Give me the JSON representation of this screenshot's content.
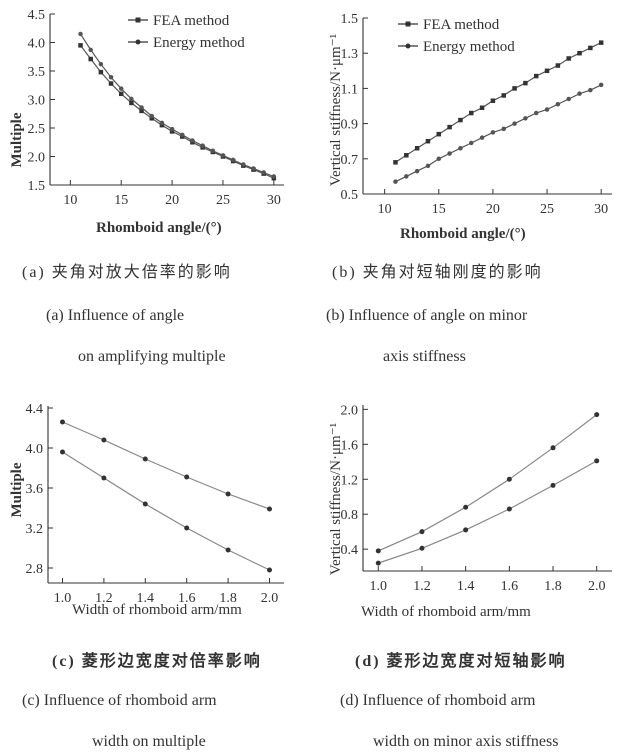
{
  "chart_data": [
    {
      "type": "line",
      "ylabel": "Multiple",
      "xlabel": "Rhomboid angle/(°)",
      "xlim": [
        8,
        31
      ],
      "ylim": [
        1.5,
        4.5
      ],
      "xticks": [
        10,
        15,
        20,
        25,
        30
      ],
      "yticks": [
        1.5,
        2.0,
        2.5,
        3.0,
        3.5,
        4.0,
        4.5
      ],
      "legend": "top-right",
      "series": [
        {
          "name": "FEA method",
          "marker": "square",
          "x": [
            11,
            12,
            13,
            14,
            15,
            16,
            17,
            18,
            19,
            20,
            21,
            22,
            23,
            24,
            25,
            26,
            27,
            28,
            29,
            30
          ],
          "y": [
            3.95,
            3.71,
            3.48,
            3.28,
            3.1,
            2.94,
            2.8,
            2.67,
            2.55,
            2.44,
            2.35,
            2.25,
            2.16,
            2.08,
            2.0,
            1.92,
            1.84,
            1.77,
            1.7,
            1.62
          ]
        },
        {
          "name": "Energy method",
          "marker": "circle",
          "x": [
            11,
            12,
            13,
            14,
            15,
            16,
            17,
            18,
            19,
            20,
            21,
            22,
            23,
            24,
            25,
            26,
            27,
            28,
            29,
            30
          ],
          "y": [
            4.15,
            3.87,
            3.62,
            3.39,
            3.19,
            3.01,
            2.86,
            2.71,
            2.59,
            2.48,
            2.38,
            2.28,
            2.19,
            2.1,
            2.02,
            1.94,
            1.86,
            1.79,
            1.72,
            1.65
          ]
        }
      ]
    },
    {
      "type": "line",
      "ylabel": "Vertical stiffness/N·μm⁻¹",
      "xlabel": "Rhomboid angle/(°)",
      "xlim": [
        8,
        31
      ],
      "ylim": [
        0.5,
        1.5
      ],
      "xticks": [
        10,
        15,
        20,
        25,
        30
      ],
      "yticks": [
        0.5,
        0.7,
        0.9,
        1.1,
        1.3,
        1.5
      ],
      "legend": "top-left",
      "series": [
        {
          "name": "FEA method",
          "marker": "square",
          "x": [
            11,
            12,
            13,
            14,
            15,
            16,
            17,
            18,
            19,
            20,
            21,
            22,
            23,
            24,
            25,
            26,
            27,
            28,
            29,
            30
          ],
          "y": [
            0.68,
            0.72,
            0.76,
            0.8,
            0.84,
            0.88,
            0.92,
            0.96,
            0.99,
            1.03,
            1.06,
            1.1,
            1.13,
            1.17,
            1.2,
            1.23,
            1.27,
            1.3,
            1.33,
            1.36
          ]
        },
        {
          "name": "Energy method",
          "marker": "circle",
          "x": [
            11,
            12,
            13,
            14,
            15,
            16,
            17,
            18,
            19,
            20,
            21,
            22,
            23,
            24,
            25,
            26,
            27,
            28,
            29,
            30
          ],
          "y": [
            0.57,
            0.6,
            0.63,
            0.66,
            0.7,
            0.73,
            0.76,
            0.79,
            0.82,
            0.85,
            0.87,
            0.9,
            0.93,
            0.96,
            0.98,
            1.01,
            1.04,
            1.07,
            1.09,
            1.12
          ]
        }
      ]
    },
    {
      "type": "line",
      "ylabel": "Multiple",
      "xlabel": "Width of rhomboid arm/mm",
      "xlim": [
        0.93,
        2.07
      ],
      "ylim": [
        2.65,
        4.42
      ],
      "xticks": [
        1.0,
        1.2,
        1.4,
        1.6,
        1.8,
        2.0
      ],
      "yticks": [
        2.8,
        3.2,
        3.6,
        4.0,
        4.4
      ],
      "series": [
        {
          "marker": "circle",
          "x": [
            1.0,
            1.2,
            1.4,
            1.6,
            1.8,
            2.0
          ],
          "y": [
            4.26,
            4.08,
            3.89,
            3.71,
            3.54,
            3.39
          ]
        },
        {
          "marker": "circle",
          "x": [
            1.0,
            1.2,
            1.4,
            1.6,
            1.8,
            2.0
          ],
          "y": [
            3.96,
            3.7,
            3.44,
            3.2,
            2.98,
            2.78
          ]
        }
      ]
    },
    {
      "type": "line",
      "ylabel": "Vertical stiffness/N·μm⁻¹",
      "xlabel": "Width of rhomboid arm/mm",
      "xlim": [
        0.93,
        2.07
      ],
      "ylim": [
        0.15,
        2.05
      ],
      "xticks": [
        1.0,
        1.2,
        1.4,
        1.6,
        1.8,
        2.0
      ],
      "yticks": [
        0.4,
        0.8,
        1.2,
        1.6,
        2.0
      ],
      "series": [
        {
          "marker": "circle",
          "x": [
            1.0,
            1.2,
            1.4,
            1.6,
            1.8,
            2.0
          ],
          "y": [
            0.38,
            0.6,
            0.88,
            1.2,
            1.56,
            1.94
          ]
        },
        {
          "marker": "circle",
          "x": [
            1.0,
            1.2,
            1.4,
            1.6,
            1.8,
            2.0
          ],
          "y": [
            0.24,
            0.41,
            0.62,
            0.86,
            1.13,
            1.41
          ]
        }
      ]
    }
  ],
  "captions": {
    "a_zh": "(a) 夹角对放大倍率的影响",
    "a_en1": "(a) Influence of angle",
    "a_en2": "on amplifying multiple",
    "b_zh": "(b) 夹角对短轴刚度的影响",
    "b_en1": "(b) Influence of angle on minor",
    "b_en2": "axis stiffness",
    "c_zh": "(c) 菱形边宽度对倍率影响",
    "c_en1": "(c) Influence of rhomboid arm",
    "c_en2": "width on multiple",
    "d_zh": "(d) 菱形边宽度对短轴影响",
    "d_en1": "(d) Influence of rhomboid arm",
    "d_en2": "width on minor axis stiffness"
  }
}
